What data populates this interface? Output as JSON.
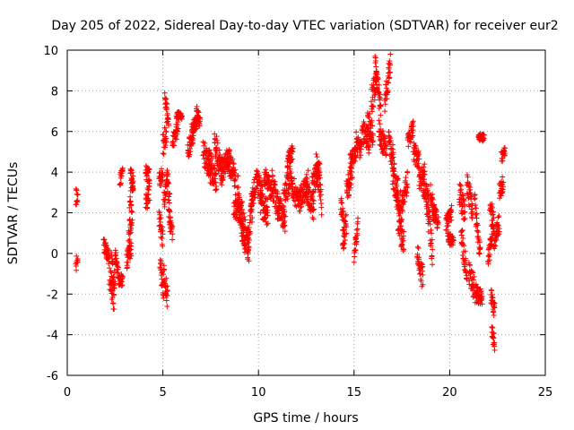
{
  "chart_data": {
    "type": "scatter",
    "title": "Day 205 of 2022, Sidereal Day-to-day VTEC variation (SDTVAR) for receiver eur2",
    "xlabel": "GPS time / hours",
    "ylabel": "SDTVAR / TECUs",
    "xlim": [
      0,
      25
    ],
    "ylim": [
      -6,
      10
    ],
    "xticks": [
      0,
      5,
      10,
      15,
      20,
      25
    ],
    "yticks": [
      -6,
      -4,
      -2,
      0,
      2,
      4,
      6,
      8,
      10
    ],
    "grid": true,
    "marker": "+",
    "color": "#ff0000",
    "series": [
      {
        "name": "SDTVAR",
        "segments": [
          [
            0.45,
            0.55,
            2.8,
            2.8,
            0.4
          ],
          [
            0.45,
            0.55,
            -0.5,
            -0.5,
            0.4
          ],
          [
            1.9,
            2.2,
            0.5,
            -0.3,
            0.4
          ],
          [
            2.2,
            2.45,
            -1.0,
            -2.4,
            0.7
          ],
          [
            2.3,
            2.5,
            -0.5,
            -1.5,
            0.6
          ],
          [
            2.5,
            2.7,
            0.0,
            -1.3,
            0.5
          ],
          [
            2.7,
            2.9,
            -1.3,
            -1.3,
            0.3
          ],
          [
            2.75,
            2.9,
            3.6,
            4.0,
            0.3
          ],
          [
            3.1,
            3.35,
            -0.4,
            0.3,
            0.5
          ],
          [
            3.2,
            3.4,
            0.5,
            2.0,
            0.6
          ],
          [
            3.25,
            3.45,
            2.0,
            3.5,
            0.6
          ],
          [
            3.3,
            3.45,
            4.0,
            3.5,
            0.4
          ],
          [
            4.1,
            4.3,
            4.0,
            3.8,
            0.4
          ],
          [
            4.1,
            4.3,
            2.5,
            3.0,
            0.5
          ],
          [
            4.8,
            5.0,
            3.5,
            4.0,
            0.5
          ],
          [
            4.8,
            5.0,
            1.8,
            0.8,
            0.6
          ],
          [
            4.85,
            5.05,
            -0.5,
            -1.8,
            0.6
          ],
          [
            5.0,
            5.2,
            5.3,
            6.0,
            0.6
          ],
          [
            5.1,
            5.3,
            7.8,
            6.5,
            0.4
          ],
          [
            5.05,
            5.25,
            2.5,
            3.5,
            0.5
          ],
          [
            5.05,
            5.25,
            -1.0,
            -2.2,
            0.6
          ],
          [
            5.2,
            5.4,
            4.0,
            2.0,
            0.6
          ],
          [
            5.3,
            5.5,
            1.8,
            1.0,
            0.5
          ],
          [
            5.5,
            5.8,
            5.5,
            6.2,
            0.4
          ],
          [
            5.7,
            6.0,
            6.8,
            6.8,
            0.2
          ],
          [
            6.3,
            6.6,
            5.0,
            6.0,
            0.5
          ],
          [
            6.5,
            6.8,
            6.0,
            6.6,
            0.4
          ],
          [
            6.75,
            6.95,
            7.0,
            6.5,
            0.3
          ],
          [
            7.1,
            7.5,
            5.0,
            4.0,
            0.7
          ],
          [
            7.4,
            7.8,
            4.5,
            3.5,
            0.7
          ],
          [
            7.7,
            8.1,
            5.5,
            4.0,
            0.7
          ],
          [
            8.0,
            8.5,
            4.0,
            4.8,
            0.6
          ],
          [
            8.4,
            8.8,
            4.5,
            3.8,
            0.6
          ],
          [
            8.7,
            9.1,
            2.5,
            1.8,
            0.6
          ],
          [
            8.9,
            9.3,
            3.2,
            1.0,
            0.8
          ],
          [
            9.1,
            9.5,
            1.5,
            0.0,
            0.8
          ],
          [
            9.4,
            9.7,
            0.3,
            2.5,
            0.8
          ],
          [
            9.6,
            9.9,
            2.5,
            3.5,
            0.6
          ],
          [
            9.9,
            10.2,
            3.5,
            3.0,
            0.6
          ],
          [
            10.1,
            10.5,
            2.5,
            2.0,
            0.7
          ],
          [
            10.3,
            10.7,
            4.0,
            3.0,
            0.6
          ],
          [
            10.7,
            11.1,
            3.5,
            2.0,
            0.7
          ],
          [
            11.0,
            11.4,
            2.5,
            1.5,
            0.6
          ],
          [
            11.3,
            11.7,
            2.5,
            4.0,
            0.7
          ],
          [
            11.5,
            11.8,
            4.5,
            5.0,
            0.4
          ],
          [
            11.7,
            12.1,
            3.5,
            2.5,
            0.6
          ],
          [
            12.1,
            12.6,
            2.5,
            3.5,
            0.6
          ],
          [
            12.5,
            12.9,
            3.0,
            2.2,
            0.6
          ],
          [
            12.8,
            13.2,
            3.5,
            4.0,
            0.6
          ],
          [
            13.0,
            13.3,
            4.5,
            2.5,
            0.7
          ],
          [
            14.3,
            14.5,
            2.5,
            1.0,
            0.6
          ],
          [
            14.4,
            14.6,
            0.5,
            1.5,
            0.6
          ],
          [
            14.6,
            14.9,
            3.0,
            4.0,
            0.6
          ],
          [
            14.8,
            15.1,
            4.5,
            5.0,
            0.4
          ],
          [
            15.0,
            15.2,
            -0.3,
            1.5,
            0.5
          ],
          [
            15.1,
            15.4,
            5.5,
            5.0,
            0.5
          ],
          [
            15.4,
            15.8,
            6.0,
            5.5,
            0.6
          ],
          [
            15.7,
            16.0,
            6.5,
            5.8,
            0.6
          ],
          [
            15.9,
            16.2,
            7.5,
            8.5,
            0.7
          ],
          [
            16.1,
            16.4,
            9.2,
            7.0,
            0.6
          ],
          [
            16.3,
            16.7,
            6.0,
            5.0,
            0.6
          ],
          [
            16.6,
            16.9,
            7.5,
            9.3,
            0.6
          ],
          [
            16.8,
            17.1,
            5.5,
            4.5,
            0.6
          ],
          [
            17.0,
            17.3,
            4.0,
            2.5,
            0.6
          ],
          [
            17.2,
            17.5,
            3.5,
            2.0,
            0.7
          ],
          [
            17.3,
            17.6,
            1.5,
            0.5,
            0.6
          ],
          [
            17.5,
            17.8,
            2.5,
            3.5,
            0.6
          ],
          [
            17.8,
            18.1,
            5.5,
            6.2,
            0.4
          ],
          [
            18.1,
            18.4,
            5.0,
            4.5,
            0.5
          ],
          [
            18.3,
            18.6,
            0.0,
            -1.3,
            0.6
          ],
          [
            18.4,
            18.7,
            3.5,
            4.0,
            0.5
          ],
          [
            18.6,
            18.9,
            3.5,
            2.5,
            0.6
          ],
          [
            18.8,
            19.1,
            2.5,
            0.0,
            0.7
          ],
          [
            19.0,
            19.2,
            3.0,
            1.8,
            0.5
          ],
          [
            19.1,
            19.4,
            2.2,
            1.5,
            0.4
          ],
          [
            19.8,
            20.1,
            1.5,
            2.0,
            0.4
          ],
          [
            19.9,
            20.2,
            0.8,
            0.5,
            0.3
          ],
          [
            20.5,
            20.8,
            3.0,
            2.0,
            0.6
          ],
          [
            20.6,
            20.9,
            1.0,
            -1.0,
            0.6
          ],
          [
            20.9,
            21.2,
            3.5,
            2.0,
            0.6
          ],
          [
            21.0,
            21.4,
            -1.0,
            -2.0,
            0.6
          ],
          [
            21.3,
            21.6,
            2.5,
            0.0,
            0.6
          ],
          [
            21.5,
            21.8,
            5.7,
            5.7,
            0.2
          ],
          [
            21.4,
            21.7,
            -2.0,
            -2.2,
            0.4
          ],
          [
            22.0,
            22.3,
            -0.5,
            1.5,
            0.6
          ],
          [
            22.1,
            22.3,
            2.5,
            1.5,
            0.5
          ],
          [
            22.15,
            22.35,
            -2.0,
            -2.8,
            0.4
          ],
          [
            22.2,
            22.35,
            -3.8,
            -4.5,
            0.4
          ],
          [
            22.3,
            22.6,
            0.5,
            1.5,
            0.5
          ],
          [
            22.6,
            22.8,
            3.0,
            3.5,
            0.4
          ],
          [
            22.7,
            22.9,
            4.7,
            5.1,
            0.3
          ]
        ]
      }
    ]
  }
}
